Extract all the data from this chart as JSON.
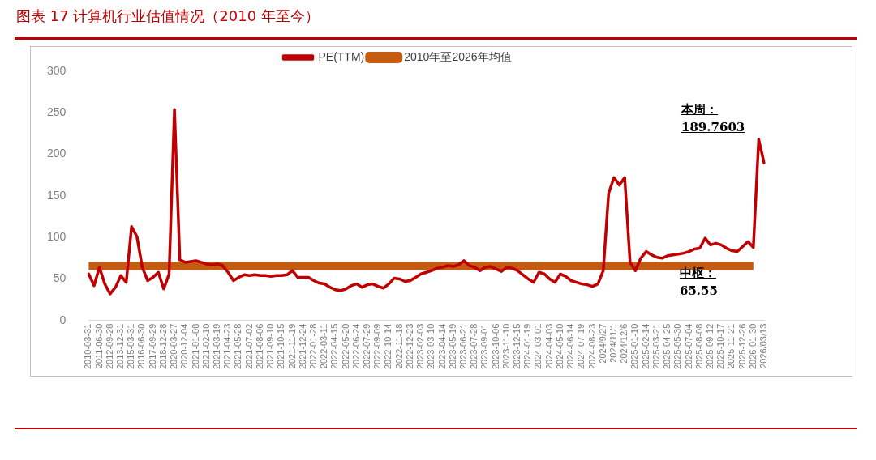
{
  "chart_data": {
    "type": "line",
    "title": "图表 17 计算机行业估值情况（2010 年至今）",
    "categories": [
      "2010-03-31",
      null,
      "2011-06-30",
      null,
      "2012-09-28",
      null,
      "2013-12-31",
      null,
      "2015-03-31",
      null,
      "2016-06-30",
      null,
      "2017-09-29",
      null,
      "2018-12-28",
      null,
      "2020-03-27",
      null,
      "2020-12-04",
      null,
      "2021-01-08",
      null,
      "2021-02-10",
      null,
      "2021-03-19",
      null,
      "2021-04-23",
      null,
      "2021-05-28",
      null,
      "2021-07-02",
      null,
      "2021-08-06",
      null,
      "2021-09-10",
      null,
      "2021-10-15",
      null,
      "2021-11-19",
      null,
      "2021-12-24",
      null,
      "2022-01-28",
      null,
      "2022-03-11",
      null,
      "2022-04-15",
      null,
      "2022-05-20",
      null,
      "2022-06-24",
      null,
      "2022-07-29",
      null,
      "2022-09-09",
      null,
      "2022-10-14",
      null,
      "2022-11-18",
      null,
      "2022-12-23",
      null,
      "2023-02-03",
      null,
      "2023-03-10",
      null,
      "2023-04-14",
      null,
      "2023-05-19",
      null,
      "2023-06-21",
      null,
      "2023-07-28",
      null,
      "2023-09-01",
      null,
      "2023-10-06",
      null,
      "2023-11-10",
      null,
      "2023-12-15",
      null,
      "2024-01-19",
      null,
      "2024-03-01",
      null,
      "2024-04-03",
      null,
      "2024-05-10",
      null,
      "2024-06-14",
      null,
      "2024-07-19",
      null,
      "2024-08-23",
      null,
      "2024/9/27",
      null,
      "2024/11/1",
      null,
      "2024/12/6",
      null,
      "2025-01-10",
      null,
      "2025-02-14",
      null,
      "2025-03-21",
      null,
      "2025-04-25",
      null,
      "2025-05-30",
      null,
      "2025-07-04",
      null,
      "2025-08-08",
      null,
      "2025-09-12",
      null,
      "2025-10-17",
      null,
      "2025-11-21",
      null,
      "2025-12-26",
      null,
      "2026-01-30",
      null,
      "2026/03/13"
    ],
    "series": [
      {
        "name": "PE(TTM)",
        "color": "#c00000",
        "values": [
          56,
          42,
          64,
          44,
          32,
          40,
          54,
          46,
          113,
          101,
          64,
          48,
          52,
          58,
          38,
          56,
          254,
          73,
          70,
          71,
          72,
          70,
          68,
          67,
          68,
          66,
          58,
          48,
          52,
          55,
          54,
          55,
          54,
          54,
          53,
          54,
          54,
          55,
          60,
          52,
          52,
          52,
          48,
          45,
          44,
          40,
          37,
          36,
          38,
          42,
          44,
          40,
          43,
          44,
          41,
          39,
          44,
          51,
          50,
          47,
          48,
          52,
          56,
          58,
          60,
          63,
          64,
          66,
          65,
          67,
          72,
          66,
          64,
          60,
          64,
          65,
          62,
          59,
          64,
          63,
          60,
          55,
          50,
          46,
          58,
          56,
          50,
          46,
          56,
          53,
          48,
          46,
          44,
          43,
          41,
          44,
          60,
          153,
          172,
          163,
          172,
          70,
          60,
          75,
          83,
          79,
          76,
          75,
          78,
          79,
          80,
          81,
          83,
          86,
          87,
          99,
          91,
          93,
          91,
          87,
          84,
          83,
          89,
          95,
          88,
          218,
          189.7603
        ]
      },
      {
        "name": "2010年至2026年均值",
        "color": "#c55a11",
        "values": [
          65.55,
          65.55,
          65.55,
          65.55,
          65.55,
          65.55,
          65.55,
          65.55,
          65.55,
          65.55,
          65.55,
          65.55,
          65.55,
          65.55,
          65.55,
          65.55,
          65.55,
          65.55,
          65.55,
          65.55,
          65.55,
          65.55,
          65.55,
          65.55,
          65.55,
          65.55,
          65.55,
          65.55,
          65.55,
          65.55,
          65.55,
          65.55,
          65.55,
          65.55,
          65.55,
          65.55,
          65.55,
          65.55,
          65.55,
          65.55,
          65.55,
          65.55,
          65.55,
          65.55,
          65.55,
          65.55,
          65.55,
          65.55,
          65.55,
          65.55,
          65.55,
          65.55,
          65.55,
          65.55,
          65.55,
          65.55,
          65.55,
          65.55,
          65.55,
          65.55,
          65.55,
          65.55,
          65.55,
          65.55,
          65.55,
          65.55,
          65.55,
          65.55,
          65.55,
          65.55,
          65.55,
          65.55,
          65.55,
          65.55,
          65.55,
          65.55,
          65.55,
          65.55,
          65.55,
          65.55,
          65.55,
          65.55,
          65.55,
          65.55,
          65.55,
          65.55,
          65.55,
          65.55,
          65.55,
          65.55,
          65.55,
          65.55,
          65.55,
          65.55,
          65.55,
          65.55,
          65.55,
          65.55,
          65.55,
          65.55,
          65.55,
          65.55,
          65.55,
          65.55,
          65.55,
          65.55,
          65.55,
          65.55,
          65.55,
          65.55,
          65.55,
          65.55,
          65.55,
          65.55,
          65.55,
          65.55,
          65.55,
          65.55,
          65.55,
          65.55,
          65.55,
          65.55,
          65.55,
          65.55,
          65.55,
          null,
          null
        ]
      }
    ],
    "ylim": [
      0,
      300
    ],
    "yticks": [
      0,
      50,
      100,
      150,
      200,
      250,
      300
    ],
    "grid": false,
    "legend": "top",
    "annotations": [
      "本周：\n189.7603",
      "中枢：\n65.55"
    ]
  }
}
